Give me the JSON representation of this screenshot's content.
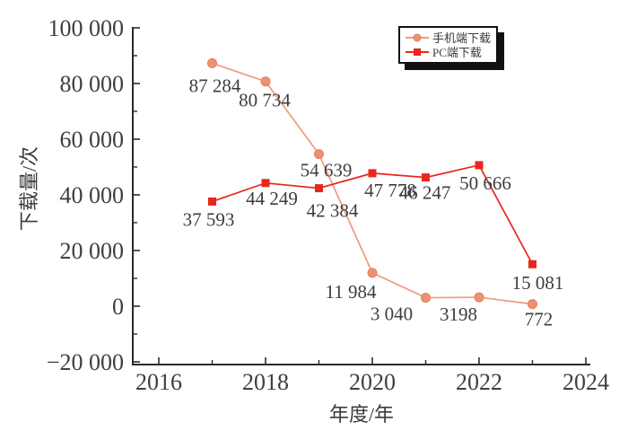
{
  "chart_data": {
    "type": "line",
    "title": "",
    "xlabel": "年度/年",
    "ylabel": "下载量/次",
    "x": [
      2017,
      2018,
      2019,
      2020,
      2021,
      2022,
      2023
    ],
    "series": [
      {
        "name": "手机端下载",
        "color": "#ee9173",
        "line_color": "#f09a7c",
        "marker": "circle",
        "values": [
          87284,
          80734,
          54639,
          11984,
          3040,
          3198,
          772
        ],
        "point_labels": [
          "87 284",
          "80 734",
          "54 639",
          "11 984",
          "3 040",
          "3198",
          "772"
        ]
      },
      {
        "name": "PC端下载",
        "color": "#e9261e",
        "line_color": "#e9261e",
        "marker": "square",
        "values": [
          37593,
          44249,
          42384,
          47778,
          46247,
          50666,
          15081
        ],
        "point_labels": [
          "37 593",
          "44 249",
          "42 384",
          "47 778",
          "46 247",
          "50 666",
          "15 081"
        ]
      }
    ],
    "xlim": [
      2015.5,
      2024.1
    ],
    "ylim": [
      -21200,
      100000
    ],
    "xticks": {
      "major": [
        2016,
        2018,
        2020,
        2022,
        2024
      ],
      "major_labels": [
        "2016",
        "2018",
        "2020",
        "2022",
        "2024"
      ],
      "minor": [
        2017,
        2019,
        2021,
        2023
      ]
    },
    "yticks": {
      "major": [
        -20000,
        0,
        20000,
        40000,
        60000,
        80000,
        100000
      ],
      "major_labels": [
        "−20 000",
        "0",
        "20 000",
        "40 000",
        "60 000",
        "80 000",
        "100 000"
      ],
      "minor": [
        -10000,
        10000,
        30000,
        50000,
        70000,
        90000
      ]
    },
    "legend": {
      "position": "top-right"
    },
    "grid": false
  },
  "colors": {
    "background": "#ffffff",
    "axis": "#2b2b2b",
    "tick_label": "#3f3f3f",
    "data_label": "#3d3d3d",
    "legend_border": "#111111",
    "mobile_series": "#ee9173",
    "pc_series": "#e9261e"
  }
}
